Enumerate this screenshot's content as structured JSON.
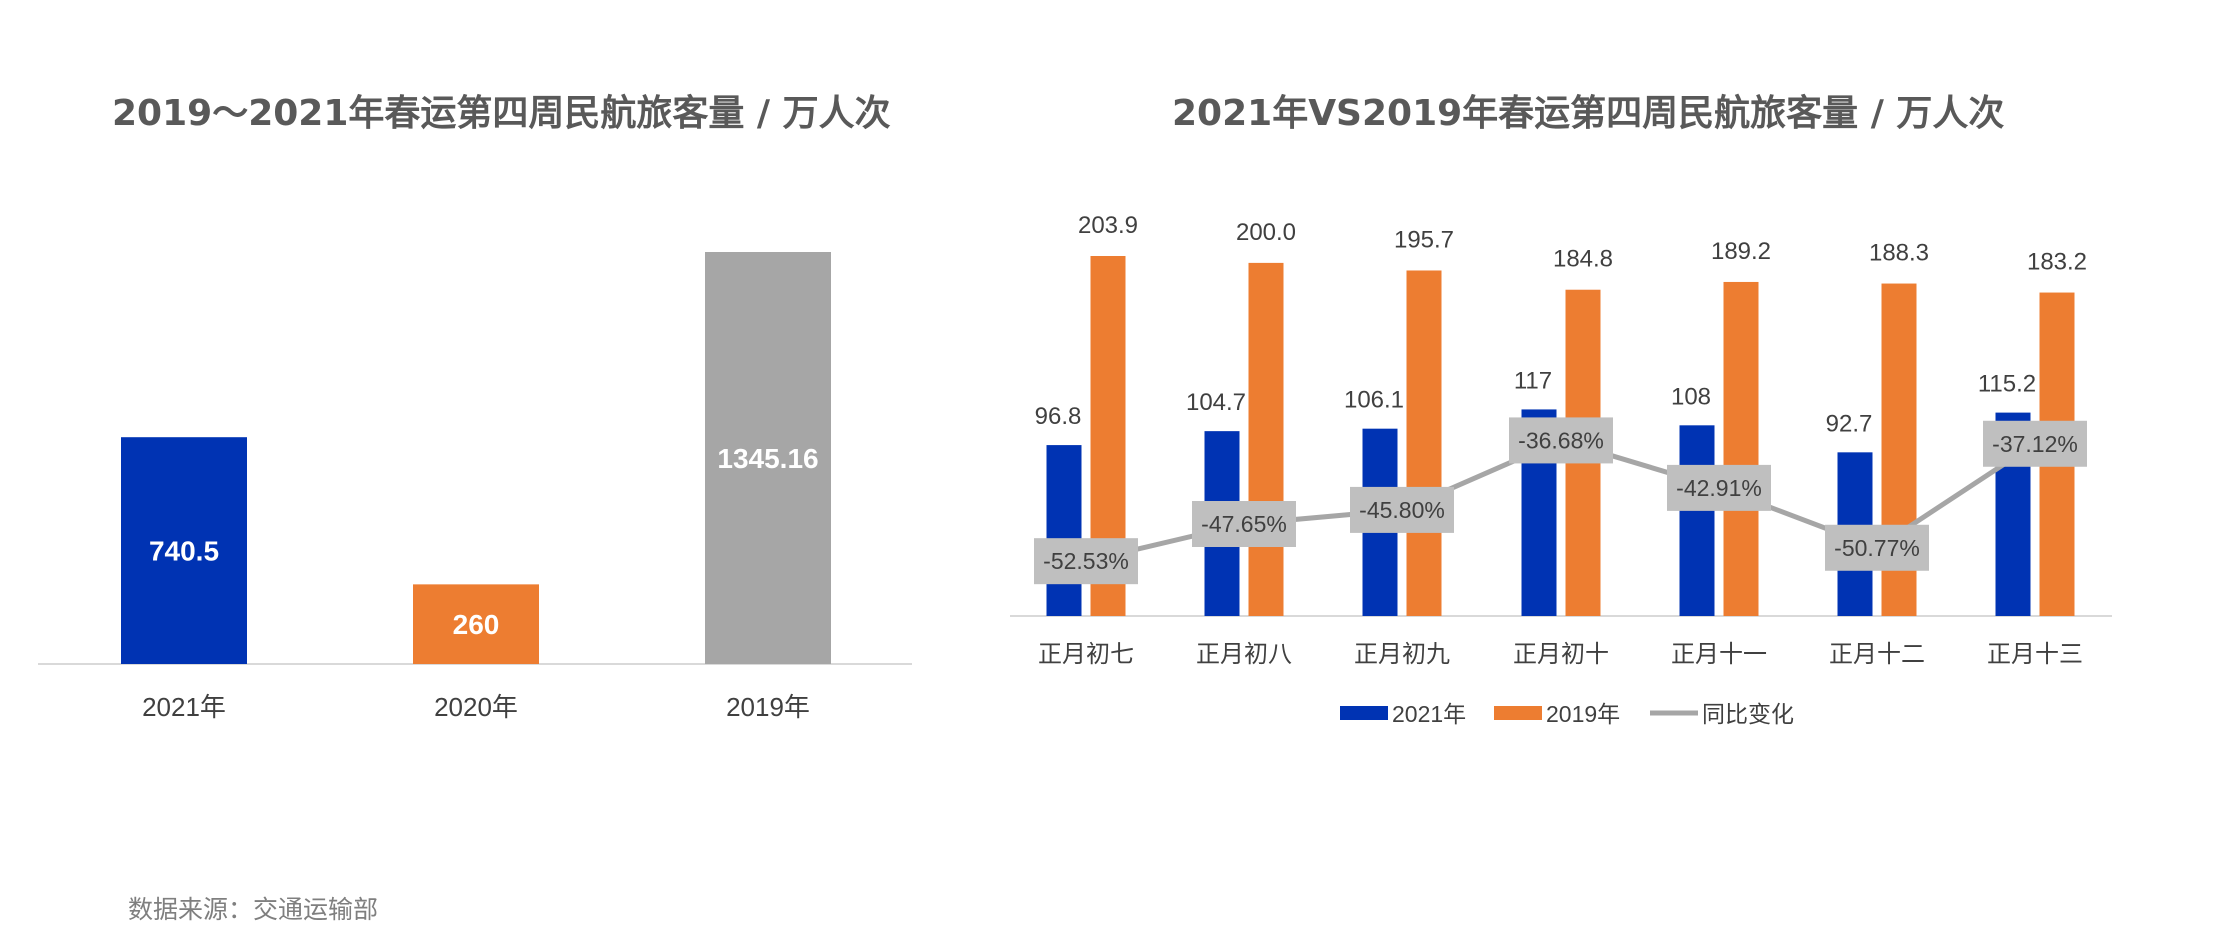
{
  "chart_data": [
    {
      "type": "bar",
      "title": "2019～2021年春运第四周民航旅客量 / 万人次",
      "categories": [
        "2021年",
        "2020年",
        "2019年"
      ],
      "values": [
        740.5,
        260,
        1345.16
      ],
      "value_labels": [
        "740.5",
        "260",
        "1345.16"
      ],
      "colors": [
        "#0033b3",
        "#ed7d31",
        "#a6a6a6"
      ],
      "ylim": [
        0,
        1345.16
      ],
      "grid": false,
      "legend": "none"
    },
    {
      "type": "bar",
      "title": "2021年VS2019年春运第四周民航旅客量 / 万人次",
      "categories": [
        "正月初七",
        "正月初八",
        "正月初九",
        "正月初十",
        "正月十一",
        "正月十二",
        "正月十三"
      ],
      "series": [
        {
          "name": "2021年",
          "type": "bar",
          "color": "#0033b3",
          "values": [
            96.8,
            104.7,
            106.1,
            117,
            108,
            92.7,
            115.2
          ],
          "labels": [
            "96.8",
            "104.7",
            "106.1",
            "117",
            "108",
            "92.7",
            "115.2"
          ]
        },
        {
          "name": "2019年",
          "type": "bar",
          "color": "#ed7d31",
          "values": [
            203.9,
            200.0,
            195.7,
            184.8,
            189.2,
            188.3,
            183.2
          ],
          "labels": [
            "203.9",
            "200.0",
            "195.7",
            "184.8",
            "189.2",
            "188.3",
            "183.2"
          ]
        },
        {
          "name": "同比变化",
          "type": "line",
          "color": "#a6a6a6",
          "values": [
            -52.53,
            -47.65,
            -45.8,
            -36.68,
            -42.91,
            -50.77,
            -37.12
          ],
          "labels": [
            "-52.53%",
            "-47.65%",
            "-45.80%",
            "-36.68%",
            "-42.91%",
            "-50.77%",
            "-37.12%"
          ]
        }
      ],
      "ylim": [
        0,
        210
      ],
      "secondary_ylim": [
        -55,
        -34
      ],
      "grid": false,
      "legend": "bottom"
    }
  ],
  "source": "数据来源：交通运输部"
}
